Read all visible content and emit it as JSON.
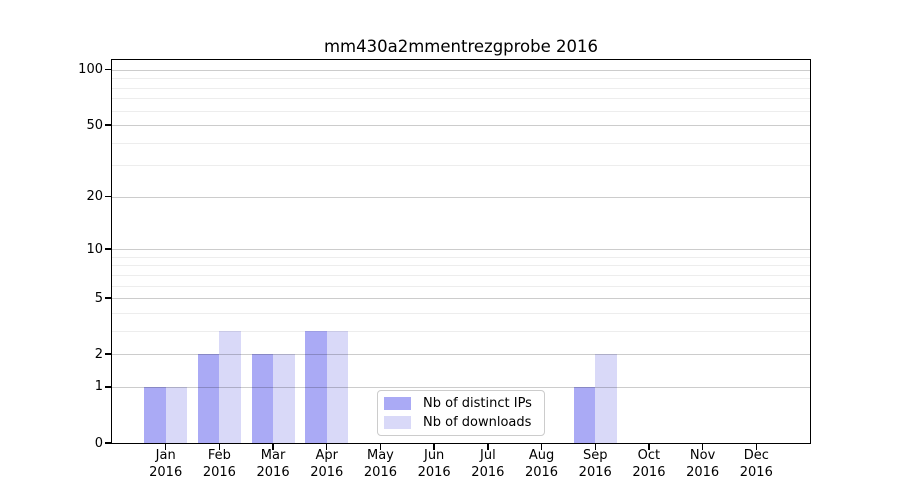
{
  "title": "mm430a2mmentrezgprobe 2016",
  "colors": {
    "bar_distinct_ips": "#aaaaf5",
    "bar_downloads": "#d9d9f8",
    "axis": "#000000",
    "legend_border": "#cccccc",
    "background": "#ffffff",
    "text": "#000000"
  },
  "chart_data": {
    "type": "bar",
    "title": "mm430a2mmentrezgprobe 2016",
    "categories": [
      "Jan 2016",
      "Feb 2016",
      "Mar 2016",
      "Apr 2016",
      "May 2016",
      "Jun 2016",
      "Jul 2016",
      "Aug 2016",
      "Sep 2016",
      "Oct 2016",
      "Nov 2016",
      "Dec 2016"
    ],
    "series": [
      {
        "name": "Nb of distinct IPs",
        "color": "#aaaaf5",
        "values": [
          1,
          2,
          2,
          3,
          0,
          0,
          0,
          0,
          1,
          0,
          0,
          0
        ]
      },
      {
        "name": "Nb of downloads",
        "color": "#d9d9f8",
        "values": [
          1,
          3,
          2,
          3,
          0,
          0,
          0,
          0,
          2,
          0,
          0,
          0
        ]
      }
    ],
    "xlabel": "",
    "ylabel": "",
    "yscale": "log1p",
    "ylim": [
      0,
      113
    ],
    "yticks": [
      0,
      1,
      2,
      5,
      10,
      20,
      50,
      100
    ],
    "yticks_minor": [
      3,
      4,
      6,
      7,
      8,
      9,
      30,
      40,
      60,
      70,
      80,
      90
    ],
    "grid": true,
    "legend": {
      "position": "lower center",
      "labels": [
        "Nb of distinct IPs",
        "Nb of downloads"
      ]
    }
  }
}
